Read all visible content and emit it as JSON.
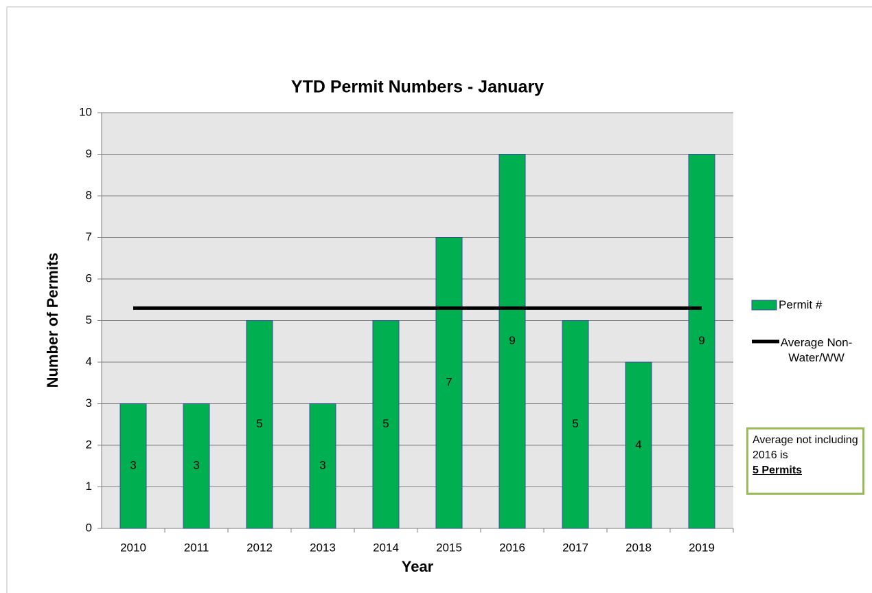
{
  "chart_data": {
    "type": "bar",
    "title": "YTD Permit Numbers - January",
    "x_label": "Year",
    "y_label": "Number of Permits",
    "categories": [
      "2010",
      "2011",
      "2012",
      "2013",
      "2014",
      "2015",
      "2016",
      "2017",
      "2018",
      "2019"
    ],
    "series": [
      {
        "name": "Permit #",
        "type": "bar",
        "color": "#00b050",
        "values": [
          3,
          3,
          5,
          3,
          5,
          7,
          9,
          5,
          4,
          9
        ]
      },
      {
        "name": "Average Non-Water/WW",
        "type": "line",
        "color": "#000000",
        "values": [
          5.3,
          5.3,
          5.3,
          5.3,
          5.3,
          5.3,
          5.3,
          5.3,
          5.3,
          5.3
        ]
      }
    ],
    "ylim": [
      0,
      10
    ],
    "yticks": [
      0,
      1,
      2,
      3,
      4,
      5,
      6,
      7,
      8,
      9,
      10
    ],
    "grid": true,
    "legend": "right",
    "annotation": {
      "text": "Average not including 2016 is",
      "emphasis": "5 Permits"
    }
  }
}
